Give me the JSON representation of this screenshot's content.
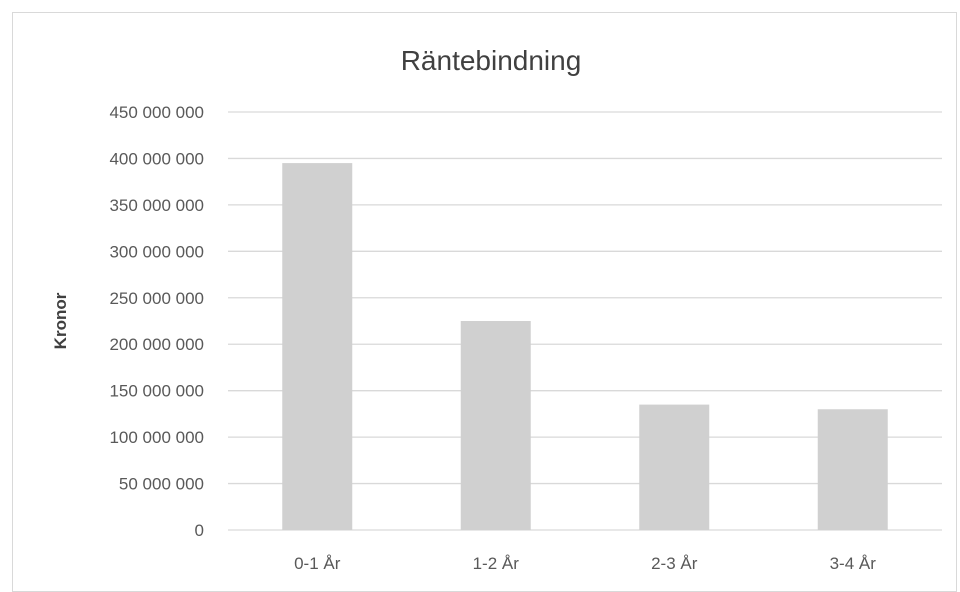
{
  "chart_data": {
    "type": "bar",
    "title": "Räntebindning",
    "xlabel": "",
    "ylabel": "Kronor",
    "categories": [
      "0-1 År",
      "1-2 År",
      "2-3 År",
      "3-4 År"
    ],
    "values": [
      395000000,
      225000000,
      135000000,
      130000000
    ],
    "ylim": [
      0,
      450000000
    ],
    "yticks": [
      0,
      50000000,
      100000000,
      150000000,
      200000000,
      250000000,
      300000000,
      350000000,
      400000000,
      450000000
    ],
    "ytick_labels": [
      "0",
      "50 000 000",
      "100 000 000",
      "150 000 000",
      "200 000 000",
      "250 000 000",
      "300 000 000",
      "350 000 000",
      "400 000 000",
      "450 000 000"
    ],
    "grid": true,
    "legend": "none",
    "colors": {
      "bar": "#d0d0d0",
      "grid": "#d9d9d9",
      "text": "#595959"
    }
  }
}
